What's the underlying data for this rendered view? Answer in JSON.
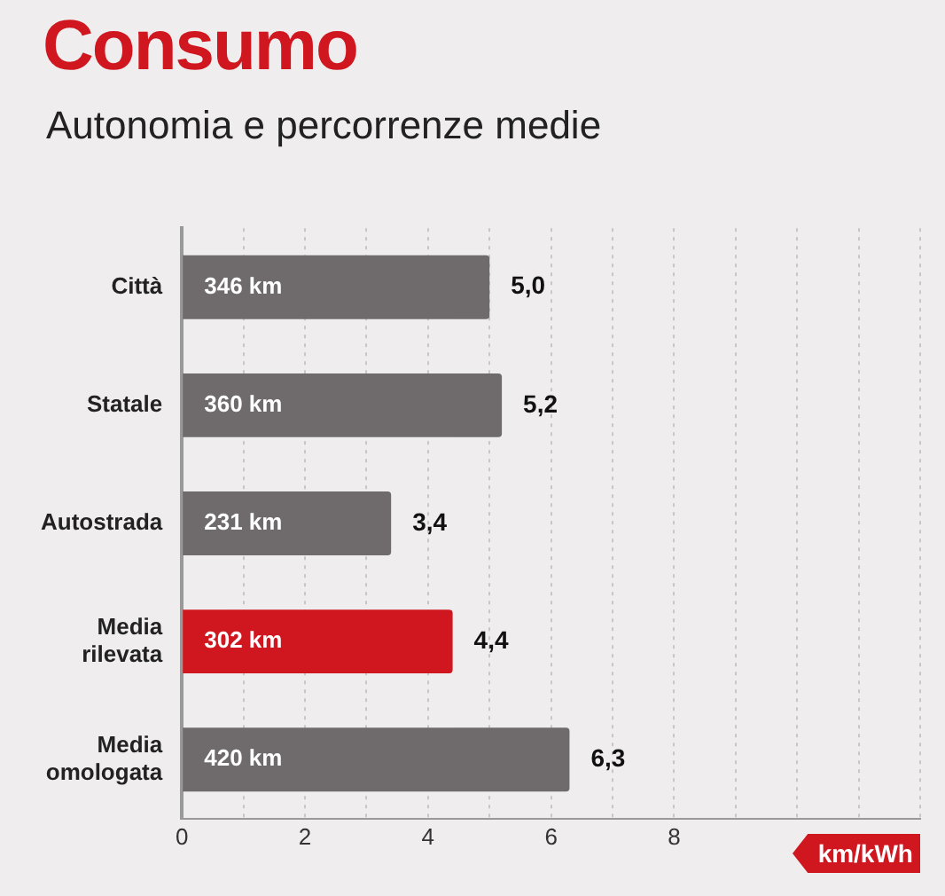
{
  "chart_data": {
    "type": "bar",
    "orientation": "horizontal",
    "title": "Consumo",
    "subtitle": "Autonomia e percorrenze medie",
    "xlabel": "km/kWh",
    "categories": [
      "Città",
      "Statale",
      "Autostrada",
      "Media rilevata",
      "Media omologata"
    ],
    "values": [
      5.0,
      5.2,
      3.4,
      4.4,
      6.3
    ],
    "colors": [
      "#6f6b6c",
      "#6f6b6c",
      "#6f6b6c",
      "#d0161f",
      "#6f6b6c"
    ],
    "value_labels": [
      "5,0",
      "5,2",
      "3,4",
      "4,4",
      "6,3"
    ],
    "annotations": [
      "346 km",
      "360 km",
      "231 km",
      "302 km",
      "420 km"
    ],
    "xlim": [
      0,
      12
    ],
    "xticks": [
      0,
      {
        "value": 1,
        "label": null
      },
      2,
      {
        "value": 3,
        "label": null
      },
      4,
      {
        "value": 5,
        "label": null
      },
      6,
      {
        "value": 7,
        "label": null
      },
      8,
      {
        "value": 9,
        "label": null
      },
      {
        "value": 10,
        "label": null
      },
      {
        "value": 11,
        "label": null
      },
      {
        "value": 12,
        "label": null
      }
    ],
    "grid": "x",
    "legend": false
  }
}
